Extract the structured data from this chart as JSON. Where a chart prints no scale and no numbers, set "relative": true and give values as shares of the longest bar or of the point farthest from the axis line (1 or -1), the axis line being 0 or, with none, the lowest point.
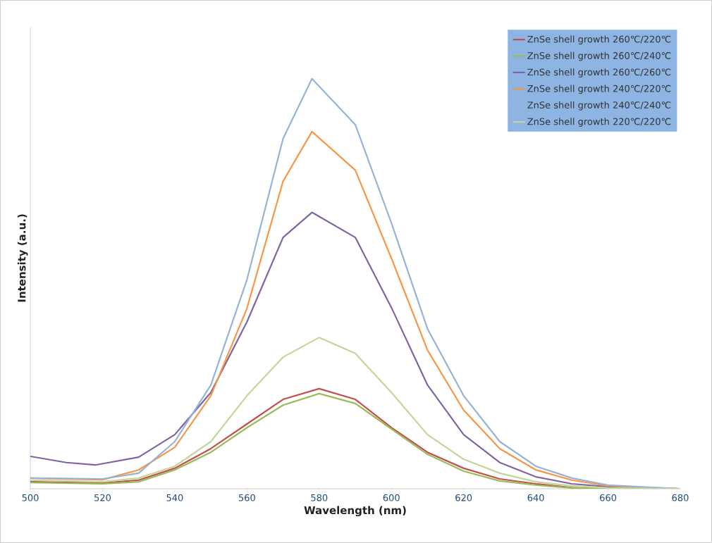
{
  "chart_data": {
    "type": "line",
    "relative": true,
    "xlabel": "Wavelength (nm)",
    "ylabel": "Intensity (a.u.)",
    "xlim": [
      500,
      680
    ],
    "xticks": [
      500,
      520,
      540,
      560,
      580,
      600,
      620,
      640,
      660,
      680
    ],
    "legend": "top right",
    "series": [
      {
        "name": "ZnSe shell growth 260℃/220℃",
        "color": "#c0504d",
        "x": [
          500,
          520,
          530,
          540,
          550,
          560,
          570,
          580,
          590,
          600,
          610,
          620,
          630,
          640,
          650,
          660,
          680
        ],
        "values": [
          0.017,
          0.014,
          0.021,
          0.05,
          0.098,
          0.158,
          0.218,
          0.244,
          0.218,
          0.149,
          0.089,
          0.05,
          0.024,
          0.012,
          0.003,
          0,
          0
        ]
      },
      {
        "name": "ZnSe shell growth 260℃/240℃",
        "color": "#9bbb59",
        "x": [
          500,
          520,
          530,
          540,
          550,
          560,
          570,
          580,
          590,
          600,
          610,
          620,
          630,
          640,
          650,
          660,
          680
        ],
        "values": [
          0.015,
          0.012,
          0.017,
          0.046,
          0.089,
          0.149,
          0.204,
          0.232,
          0.208,
          0.146,
          0.084,
          0.043,
          0.019,
          0.009,
          0.002,
          0,
          0
        ]
      },
      {
        "name": "ZnSe shell growth 260℃/260℃",
        "color": "#8064a2",
        "x": [
          500,
          510,
          518,
          530,
          540,
          550,
          560,
          570,
          578,
          590,
          600,
          610,
          620,
          630,
          640,
          650,
          660,
          680
        ],
        "values": [
          0.079,
          0.064,
          0.058,
          0.077,
          0.132,
          0.235,
          0.407,
          0.613,
          0.674,
          0.613,
          0.442,
          0.253,
          0.132,
          0.064,
          0.029,
          0.012,
          0.005,
          0
        ]
      },
      {
        "name": "ZnSe shell growth 240℃/220℃",
        "color": "#f79646",
        "x": [
          500,
          520,
          530,
          540,
          550,
          560,
          570,
          578,
          590,
          600,
          610,
          620,
          630,
          640,
          650,
          660,
          680
        ],
        "values": [
          0.026,
          0.022,
          0.046,
          0.101,
          0.227,
          0.44,
          0.75,
          0.871,
          0.777,
          0.562,
          0.338,
          0.192,
          0.098,
          0.046,
          0.021,
          0.007,
          0
        ]
      },
      {
        "name": "ZnSe shell growth 240℃/240℃",
        "color": "#95b3d7",
        "x": [
          500,
          520,
          530,
          540,
          550,
          560,
          570,
          578,
          590,
          600,
          610,
          620,
          630,
          640,
          650,
          660,
          680
        ],
        "values": [
          0.026,
          0.024,
          0.038,
          0.115,
          0.253,
          0.51,
          0.854,
          1.0,
          0.888,
          0.648,
          0.39,
          0.227,
          0.115,
          0.055,
          0.026,
          0.009,
          0
        ]
      },
      {
        "name": "ZnSe shell growth 220℃/220℃",
        "color": "#c3d69b",
        "x": [
          500,
          520,
          530,
          540,
          550,
          560,
          570,
          580,
          590,
          600,
          610,
          620,
          630,
          640,
          650,
          660,
          680
        ],
        "values": [
          0.021,
          0.017,
          0.026,
          0.055,
          0.115,
          0.227,
          0.321,
          0.369,
          0.33,
          0.235,
          0.132,
          0.072,
          0.038,
          0.017,
          0.007,
          0.002,
          0
        ]
      }
    ]
  }
}
